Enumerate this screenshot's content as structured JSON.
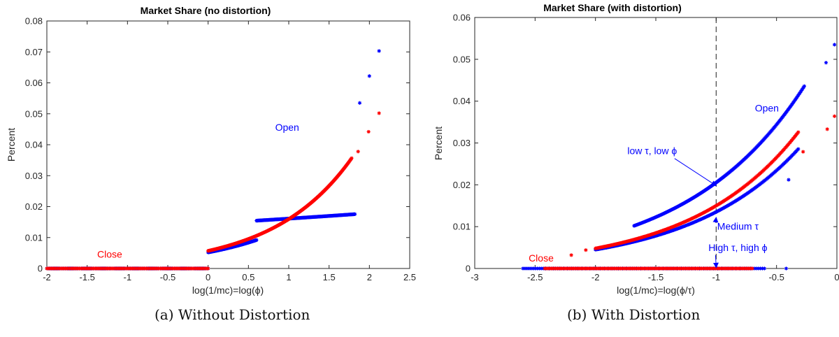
{
  "panels": [
    {
      "caption": "(a) Without Distortion",
      "chart": {
        "type": "scatter",
        "title": "Market Share (no distortion)",
        "xlabel": "log(1/mc)=log(ϕ)",
        "ylabel": "Percent",
        "xlim": [
          -2,
          2.5
        ],
        "ylim": [
          0,
          0.08
        ],
        "xticks": [
          "-2",
          "-1.5",
          "-1",
          "-0.5",
          "0",
          "0.5",
          "1",
          "1.5",
          "2",
          "2.5"
        ],
        "yticks": [
          "0",
          "0.01",
          "0.02",
          "0.03",
          "0.04",
          "0.05",
          "0.06",
          "0.07",
          "0.08"
        ],
        "colors": {
          "open": "#0000ff",
          "close": "#ff0000"
        },
        "annotations": [
          {
            "text": "Open",
            "color": "#0000ff",
            "x": 0.98,
            "y": 0.0445
          },
          {
            "text": "Close",
            "color": "#ff0000",
            "x": -1.22,
            "y": 0.0035
          }
        ],
        "series": [
          {
            "name": "Open",
            "color": "#0000ff",
            "segments": [
              {
                "x0": 0.0,
                "x1": 0.6,
                "a": 0.0052,
                "b": 0.95,
                "n": 140
              },
              {
                "x0": 0.6,
                "x1": 1.82,
                "a": 0.01546,
                "b": 0.104,
                "k": 1.35,
                "n": 220
              },
              {
                "x0": -2.0,
                "x1": 0.0,
                "a": 0.0,
                "b": 0.0,
                "n": 140
              }
            ],
            "points": [
              [
                1.88,
                0.0535
              ],
              [
                2.0,
                0.0622
              ],
              [
                2.12,
                0.0703
              ]
            ]
          },
          {
            "name": "Close",
            "color": "#ff0000",
            "segments": [
              {
                "x0": 0.0,
                "x1": 1.78,
                "a": 0.0057,
                "b": 1.03,
                "n": 260
              },
              {
                "x0": -2.0,
                "x1": 0.0,
                "a": 0.0,
                "b": 0.0,
                "n": 150
              }
            ],
            "points": [
              [
                1.86,
                0.0378
              ],
              [
                1.99,
                0.0442
              ],
              [
                2.12,
                0.0502
              ]
            ]
          }
        ]
      }
    },
    {
      "caption": "(b) With Distortion",
      "chart": {
        "type": "scatter",
        "title": "Market Share (with distortion)",
        "xlabel": "log(1/mc)=log(ϕ/τ)",
        "ylabel": "Percent",
        "xlim": [
          -3,
          0
        ],
        "ylim": [
          0,
          0.06
        ],
        "xticks": [
          "-3",
          "-2.5",
          "-2",
          "-1.5",
          "-1",
          "-0.5",
          "0"
        ],
        "yticks": [
          "0",
          "0.01",
          "0.02",
          "0.03",
          "0.04",
          "0.05",
          "0.06"
        ],
        "vline_x": -1,
        "colors": {
          "open": "#0000ff",
          "close": "#ff0000"
        },
        "annotations": [
          {
            "text": "Open",
            "color": "#0000ff",
            "x": -0.58,
            "y": 0.0375
          },
          {
            "text": "Close",
            "color": "#ff0000",
            "x": -2.45,
            "y": 0.0017
          },
          {
            "text": "low τ, low ϕ",
            "color": "#0000ff",
            "x": -1.53,
            "y": 0.0273,
            "arrow_to": [
              -1.0,
              0.0198
            ]
          },
          {
            "text": "Medium τ",
            "color": "#0000ff",
            "x": -0.82,
            "y": 0.0093,
            "arrow_to": [
              -1.0,
              0.0122
            ]
          },
          {
            "text": "High τ, high ϕ",
            "color": "#0000ff",
            "x": -0.82,
            "y": 0.0042,
            "arrow_to": [
              -1.0,
              0.0002
            ]
          }
        ],
        "series": [
          {
            "name": "Open (low τ, low ϕ)",
            "color": "#0000ff",
            "segments": [
              {
                "x0": -1.68,
                "x1": -0.27,
                "a": 0.0102,
                "b": 1.03,
                "k": 1.68,
                "n": 240
              }
            ],
            "points": [
              [
                -0.09,
                0.0492
              ],
              [
                -0.02,
                0.0535
              ]
            ]
          },
          {
            "name": "Open (medium τ)",
            "color": "#0000ff",
            "segments": [
              {
                "x0": -2.0,
                "x1": -0.32,
                "a": 0.0045,
                "b": 1.1,
                "k": 2.0,
                "n": 240
              }
            ],
            "points": [
              [
                -0.4,
                0.0212
              ]
            ]
          },
          {
            "name": "Close (medium τ)",
            "color": "#ff0000",
            "segments": [
              {
                "x0": -2.0,
                "x1": -0.32,
                "a": 0.0048,
                "b": 1.14,
                "k": 2.0,
                "n": 240
              }
            ],
            "points": [
              [
                -2.08,
                0.0044
              ],
              [
                -2.2,
                0.0032
              ],
              [
                -0.28,
                0.0279
              ],
              [
                -0.08,
                0.0333
              ],
              [
                -0.02,
                0.0364
              ]
            ]
          },
          {
            "name": "Open (high τ, high ϕ)",
            "color": "#0000ff",
            "segments": [
              {
                "x0": -2.6,
                "x1": -0.6,
                "a": 0.0,
                "b": 0.0,
                "n": 120
              }
            ],
            "points": [
              [
                -0.42,
                0.0
              ]
            ]
          },
          {
            "name": "Close (high τ, high ϕ)",
            "color": "#ff0000",
            "segments": [
              {
                "x0": -2.42,
                "x1": -0.7,
                "a": 0.0,
                "b": 0.0,
                "n": 160
              }
            ],
            "points": []
          }
        ]
      }
    }
  ]
}
